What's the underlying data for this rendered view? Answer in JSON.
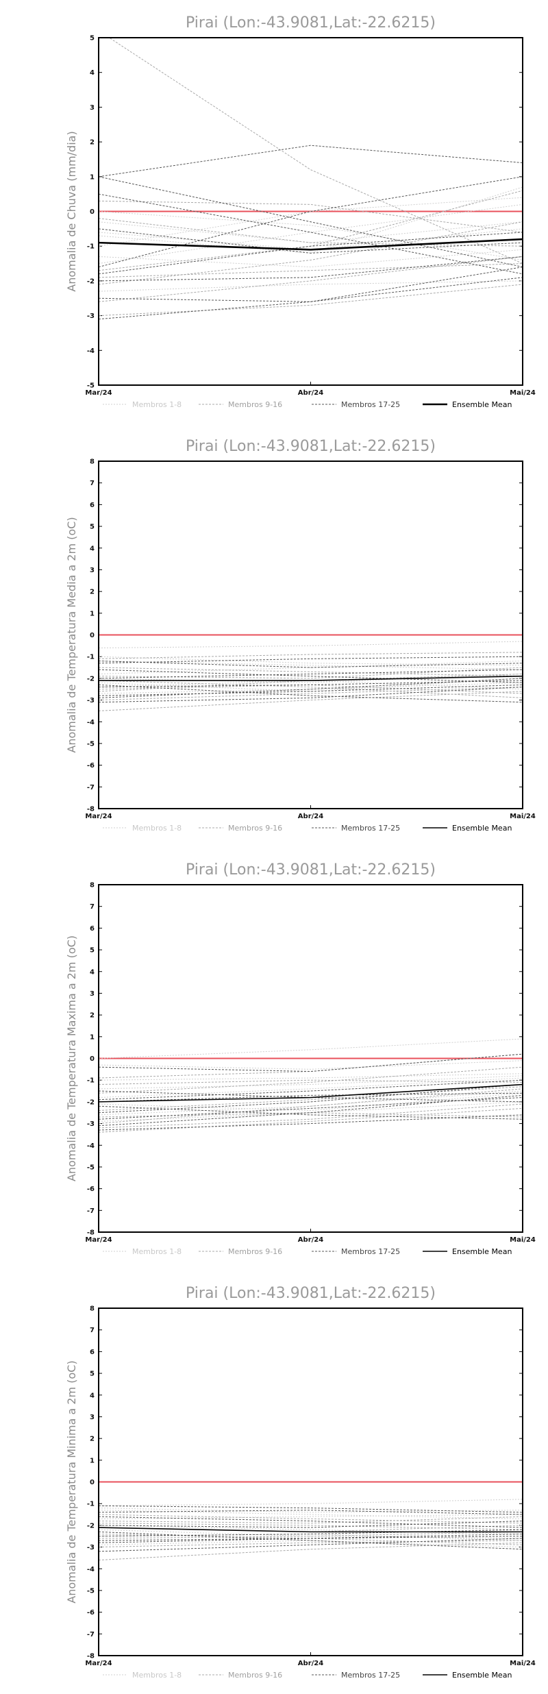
{
  "chart_data": [
    {
      "type": "line",
      "title": "Pirai (Lon:-43.9081,Lat:-22.6215)",
      "ylabel": "Anomalia de Chuva (mm/dia)",
      "xlabel": "",
      "categories": [
        "Mar/24",
        "Abr/24",
        "Mai/24"
      ],
      "ylim": [
        -5,
        5
      ],
      "yticks": [
        -5,
        -4,
        -3,
        -2,
        -1,
        0,
        1,
        2,
        3,
        4,
        5
      ],
      "reference_line": 0,
      "reference_color": "#e8505b",
      "legend": [
        "Membros 1-8",
        "Membros 9-16",
        "Membros 17-25",
        "Ensemble Mean"
      ],
      "members": [
        [
          0.0,
          -0.4,
          -1.4
        ],
        [
          -0.3,
          -0.9,
          -0.3
        ],
        [
          -0.7,
          -1.2,
          0.7
        ],
        [
          -1.0,
          0.0,
          0.4
        ],
        [
          -1.3,
          -1.6,
          -1.1
        ],
        [
          -2.3,
          -2.1,
          -2.0
        ],
        [
          -1.5,
          -0.6,
          0.2
        ],
        [
          -0.6,
          -1.1,
          -0.5
        ],
        [
          5.2,
          1.2,
          -1.5
        ],
        [
          -1.9,
          -1.7,
          -1.5
        ],
        [
          -2.6,
          -2.0,
          -1.3
        ],
        [
          -1.7,
          -1.0,
          0.6
        ],
        [
          -2.1,
          -1.4,
          -0.3
        ],
        [
          -0.2,
          -0.9,
          -1.0
        ],
        [
          -3.0,
          -2.7,
          -2.1
        ],
        [
          0.3,
          0.2,
          -0.6
        ],
        [
          1.0,
          1.9,
          1.4
        ],
        [
          -1.6,
          0.0,
          1.0
        ],
        [
          0.5,
          -0.6,
          -1.8
        ],
        [
          -2.5,
          -2.6,
          -1.6
        ],
        [
          -2.0,
          -1.9,
          -1.3
        ],
        [
          -0.5,
          -1.2,
          -0.9
        ],
        [
          -1.8,
          -1.0,
          -0.6
        ],
        [
          1.0,
          -0.3,
          -1.6
        ],
        [
          -3.1,
          -2.6,
          -1.9
        ]
      ],
      "ensemble_mean": [
        -0.9,
        -1.1,
        -0.8
      ]
    },
    {
      "type": "line",
      "title": "Pirai (Lon:-43.9081,Lat:-22.6215)",
      "ylabel": "Anomalia de Temperatura Media a 2m (oC)",
      "xlabel": "",
      "categories": [
        "Mar/24",
        "Abr/24",
        "Mai/24"
      ],
      "ylim": [
        -8,
        8
      ],
      "yticks": [
        -8,
        -7,
        -6,
        -5,
        -4,
        -3,
        -2,
        -1,
        0,
        1,
        2,
        3,
        4,
        5,
        6,
        7,
        8
      ],
      "reference_line": 0,
      "reference_color": "#e8505b",
      "legend": [
        "Membros 1-8",
        "Membros 9-16",
        "Membros 17-25",
        "Ensemble Mean"
      ],
      "members": [
        [
          -0.6,
          -0.5,
          -0.3
        ],
        [
          -1.2,
          -1.4,
          -1.6
        ],
        [
          -2.0,
          -2.2,
          -1.8
        ],
        [
          -2.4,
          -2.1,
          -2.5
        ],
        [
          -1.8,
          -1.5,
          -1.2
        ],
        [
          -2.7,
          -2.5,
          -2.2
        ],
        [
          -1.0,
          -1.3,
          -1.4
        ],
        [
          -2.2,
          -2.6,
          -2.0
        ],
        [
          -1.1,
          -0.9,
          -0.8
        ],
        [
          -2.5,
          -2.3,
          -2.7
        ],
        [
          -3.0,
          -2.7,
          -2.4
        ],
        [
          -1.5,
          -1.7,
          -1.9
        ],
        [
          -2.1,
          -2.4,
          -2.9
        ],
        [
          -2.6,
          -2.1,
          -1.8
        ],
        [
          -3.5,
          -3.0,
          -2.6
        ],
        [
          -1.9,
          -2.0,
          -1.5
        ],
        [
          -2.3,
          -2.8,
          -3.1
        ],
        [
          -1.3,
          -1.1,
          -1.0
        ],
        [
          -2.8,
          -2.6,
          -2.3
        ],
        [
          -2.0,
          -1.8,
          -1.6
        ],
        [
          -1.6,
          -1.9,
          -2.2
        ],
        [
          -3.1,
          -2.9,
          -2.4
        ],
        [
          -2.4,
          -2.3,
          -2.1
        ],
        [
          -1.2,
          -1.5,
          -1.3
        ],
        [
          -2.9,
          -2.5,
          -2.0
        ]
      ],
      "ensemble_mean": [
        -2.1,
        -2.1,
        -1.9
      ]
    },
    {
      "type": "line",
      "title": "Pirai (Lon:-43.9081,Lat:-22.6215)",
      "ylabel": "Anomalia de Temperatura Maxima a 2m (oC)",
      "xlabel": "",
      "categories": [
        "Mar/24",
        "Abr/24",
        "Mai/24"
      ],
      "ylim": [
        -8,
        8
      ],
      "yticks": [
        -8,
        -7,
        -6,
        -5,
        -4,
        -3,
        -2,
        -1,
        0,
        1,
        2,
        3,
        4,
        5,
        6,
        7,
        8
      ],
      "reference_line": 0,
      "reference_color": "#e8505b",
      "legend": [
        "Membros 1-8",
        "Membros 9-16",
        "Membros 17-25",
        "Ensemble Mean"
      ],
      "members": [
        [
          0.0,
          0.4,
          0.9
        ],
        [
          -1.0,
          -0.9,
          -0.7
        ],
        [
          -1.8,
          -1.4,
          -0.9
        ],
        [
          -2.6,
          -2.2,
          -1.5
        ],
        [
          -1.4,
          -1.2,
          -0.8
        ],
        [
          -2.9,
          -2.5,
          -2.0
        ],
        [
          -0.3,
          -0.5,
          -0.1
        ],
        [
          -2.1,
          -2.4,
          -1.6
        ],
        [
          -0.9,
          -0.6,
          0.2
        ],
        [
          -2.4,
          -1.9,
          -1.3
        ],
        [
          -3.2,
          -2.8,
          -2.1
        ],
        [
          -1.6,
          -1.1,
          -0.4
        ],
        [
          -2.7,
          -2.5,
          -2.7
        ],
        [
          -3.0,
          -2.2,
          -1.4
        ],
        [
          -3.4,
          -2.9,
          -2.3
        ],
        [
          -1.2,
          -1.0,
          -1.1
        ],
        [
          -2.2,
          -2.6,
          -2.8
        ],
        [
          -1.9,
          -1.5,
          -1.0
        ],
        [
          -3.1,
          -2.5,
          -1.7
        ],
        [
          -0.4,
          -0.6,
          0.2
        ],
        [
          -2.5,
          -2.0,
          -1.2
        ],
        [
          -2.0,
          -1.7,
          -1.6
        ],
        [
          -3.3,
          -3.0,
          -2.6
        ],
        [
          -1.5,
          -1.8,
          -2.0
        ],
        [
          -2.8,
          -2.3,
          -1.8
        ]
      ],
      "ensemble_mean": [
        -2.0,
        -1.8,
        -1.2
      ]
    },
    {
      "type": "line",
      "title": "Pirai (Lon:-43.9081,Lat:-22.6215)",
      "ylabel": "Anomalia de Temperatura Minima a 2m (oC)",
      "xlabel": "",
      "categories": [
        "Mar/24",
        "Abr/24",
        "Mai/24"
      ],
      "ylim": [
        -8,
        8
      ],
      "yticks": [
        -8,
        -7,
        -6,
        -5,
        -4,
        -3,
        -2,
        -1,
        0,
        1,
        2,
        3,
        4,
        5,
        6,
        7,
        8
      ],
      "reference_line": 0,
      "reference_color": "#e8505b",
      "legend": [
        "Membros 1-8",
        "Membros 9-16",
        "Membros 17-25",
        "Ensemble Mean"
      ],
      "members": [
        [
          -1.1,
          -1.0,
          -0.8
        ],
        [
          -1.3,
          -1.5,
          -1.7
        ],
        [
          -2.0,
          -2.2,
          -2.4
        ],
        [
          -2.5,
          -2.4,
          -2.7
        ],
        [
          -1.7,
          -1.6,
          -1.5
        ],
        [
          -2.9,
          -2.7,
          -3.0
        ],
        [
          -1.2,
          -1.4,
          -1.3
        ],
        [
          -2.2,
          -2.5,
          -2.6
        ],
        [
          -1.5,
          -1.7,
          -1.9
        ],
        [
          -2.6,
          -2.5,
          -2.3
        ],
        [
          -3.0,
          -2.8,
          -2.7
        ],
        [
          -1.9,
          -2.0,
          -2.2
        ],
        [
          -2.4,
          -2.6,
          -2.9
        ],
        [
          -2.1,
          -2.3,
          -2.0
        ],
        [
          -3.6,
          -3.1,
          -2.8
        ],
        [
          -1.8,
          -1.9,
          -1.6
        ],
        [
          -2.3,
          -2.7,
          -3.1
        ],
        [
          -1.4,
          -1.3,
          -1.5
        ],
        [
          -2.7,
          -2.6,
          -2.5
        ],
        [
          -2.0,
          -2.1,
          -1.8
        ],
        [
          -1.6,
          -1.8,
          -2.1
        ],
        [
          -3.2,
          -2.9,
          -2.6
        ],
        [
          -2.5,
          -2.4,
          -2.2
        ],
        [
          -1.1,
          -1.2,
          -1.4
        ],
        [
          -2.8,
          -2.6,
          -2.4
        ]
      ],
      "ensemble_mean": [
        -2.1,
        -2.3,
        -2.3
      ]
    }
  ]
}
